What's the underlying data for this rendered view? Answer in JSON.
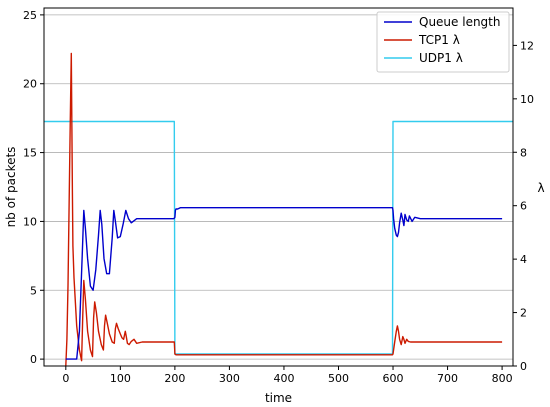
{
  "chart_data": {
    "type": "line",
    "xlabel": "time",
    "ylabel": "nb of packets",
    "y2label": "λ",
    "xlim": [
      -40,
      820
    ],
    "ylim": [
      -0.5,
      25.5
    ],
    "y2lim": [
      0,
      13.4
    ],
    "xticks": [
      0,
      100,
      200,
      300,
      400,
      500,
      600,
      700,
      800
    ],
    "yticks": [
      0,
      5,
      10,
      15,
      20,
      25
    ],
    "y2ticks": [
      0,
      2,
      4,
      6,
      8,
      10,
      12
    ],
    "grid": "horizontal",
    "legend_position": "top-right",
    "series": [
      {
        "name": "Queue length",
        "axis": "left",
        "color": "#0000cc",
        "x": [
          0,
          5,
          10,
          15,
          20,
          25,
          30,
          33,
          36,
          40,
          45,
          50,
          55,
          60,
          63,
          66,
          70,
          75,
          80,
          85,
          88,
          91,
          95,
          100,
          105,
          110,
          115,
          120,
          130,
          150,
          175,
          198,
          200,
          201,
          202,
          205,
          210,
          250,
          300,
          400,
          500,
          599,
          600,
          601,
          603,
          606,
          608,
          610,
          612,
          615,
          618,
          620,
          622,
          625,
          628,
          630,
          635,
          640,
          650,
          700,
          800
        ],
        "y": [
          0,
          0,
          0,
          0,
          0,
          2,
          7.5,
          10.8,
          9.5,
          7.3,
          5.3,
          5.0,
          6.5,
          9.0,
          10.8,
          9.8,
          7.3,
          6.2,
          6.2,
          8.8,
          10.8,
          10.0,
          8.8,
          8.9,
          9.8,
          10.8,
          10.2,
          9.9,
          10.2,
          10.2,
          10.2,
          10.2,
          10.3,
          10.8,
          10.9,
          10.9,
          11.0,
          11.0,
          11.0,
          11.0,
          11.0,
          11.0,
          10.8,
          10.2,
          9.5,
          9.0,
          8.9,
          9.2,
          9.9,
          10.6,
          10.1,
          9.7,
          10.5,
          10.1,
          10.0,
          10.4,
          10.0,
          10.3,
          10.2,
          10.2,
          10.2
        ]
      },
      {
        "name": "TCP1 λ",
        "axis": "right",
        "color": "#cc1a00",
        "x": [
          0,
          2,
          4,
          6,
          8,
          10,
          12,
          13,
          15,
          20,
          25,
          29,
          31,
          33,
          36,
          40,
          45,
          49,
          51,
          53,
          56,
          60,
          65,
          69,
          71,
          73,
          76,
          80,
          85,
          89,
          91,
          93,
          96,
          100,
          103,
          106,
          109,
          111,
          113,
          116,
          120,
          125,
          130,
          140,
          150,
          170,
          199,
          200,
          202,
          205,
          210,
          250,
          300,
          400,
          500,
          599,
          600,
          603,
          606,
          608,
          610,
          612,
          615,
          618,
          620,
          622,
          625,
          628,
          632,
          640,
          650,
          700,
          800
        ],
        "y": [
          0,
          1.0,
          3.0,
          6.0,
          9.0,
          11.7,
          6.5,
          4.5,
          3.3,
          1.5,
          0.6,
          0.2,
          1.8,
          3.2,
          2.5,
          1.3,
          0.6,
          0.35,
          1.8,
          2.4,
          2.0,
          1.3,
          0.8,
          0.6,
          1.5,
          1.9,
          1.6,
          1.2,
          0.9,
          0.85,
          1.4,
          1.6,
          1.4,
          1.2,
          1.05,
          1.0,
          1.3,
          1.1,
          0.85,
          0.8,
          0.92,
          1.0,
          0.85,
          0.9,
          0.9,
          0.9,
          0.9,
          0.45,
          0.42,
          0.42,
          0.42,
          0.42,
          0.42,
          0.42,
          0.42,
          0.42,
          0.45,
          0.9,
          1.3,
          1.5,
          1.3,
          1.0,
          0.8,
          1.1,
          1.0,
          0.85,
          1.0,
          0.92,
          0.9,
          0.9,
          0.9,
          0.9,
          0.9
        ]
      },
      {
        "name": "UDP1 λ",
        "axis": "right",
        "color": "#33ccee",
        "x": [
          -40,
          199,
          200,
          599,
          600,
          820
        ],
        "y": [
          9.15,
          9.15,
          0.45,
          0.45,
          9.15,
          9.15
        ]
      }
    ]
  }
}
